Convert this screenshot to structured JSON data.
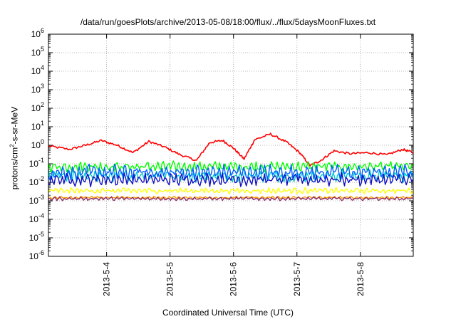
{
  "chart_data": {
    "type": "line",
    "title": "/data/run/goesPlots/archive/2013-05-08/18:00/flux/../flux/5daysMoonFluxes.txt",
    "xlabel": "Coordinated Universal Time (UTC)",
    "ylabel": {
      "pre": "protons/cm",
      "sup": "2",
      "post": "-s-sr-MeV"
    },
    "yscale": "log",
    "ylim": [
      1e-06,
      1000000.0
    ],
    "yticks": [
      {
        "exp": "-6"
      },
      {
        "exp": "-5"
      },
      {
        "exp": "-4"
      },
      {
        "exp": "-3"
      },
      {
        "exp": "-2"
      },
      {
        "exp": "-1"
      },
      {
        "exp": "0"
      },
      {
        "exp": "1"
      },
      {
        "exp": "2"
      },
      {
        "exp": "3"
      },
      {
        "exp": "4"
      },
      {
        "exp": "5"
      },
      {
        "exp": "6"
      }
    ],
    "xlim": [
      "2013-05-03 02:00",
      "2013-05-08 20:00"
    ],
    "xticks": [
      "2013-5-4",
      "2013-5-5",
      "2013-5-6",
      "2013-5-7",
      "2013-5-8"
    ],
    "grid": true,
    "series": [
      {
        "color": "#ff0000",
        "style": "red",
        "points": [
          [
            "2013-05-03 02:00",
            0.9
          ],
          [
            "2013-05-03 10:00",
            0.6
          ],
          [
            "2013-05-03 16:00",
            1.0
          ],
          [
            "2013-05-03 22:00",
            1.8
          ],
          [
            "2013-05-04 04:00",
            1.0
          ],
          [
            "2013-05-04 10:00",
            0.4
          ],
          [
            "2013-05-04 16:00",
            1.6
          ],
          [
            "2013-05-04 22:00",
            0.8
          ],
          [
            "2013-05-05 04:00",
            0.3
          ],
          [
            "2013-05-05 10:00",
            0.15
          ],
          [
            "2013-05-05 15:00",
            1.4
          ],
          [
            "2013-05-05 20:00",
            1.8
          ],
          [
            "2013-05-06 00:00",
            0.7
          ],
          [
            "2013-05-06 04:00",
            0.18
          ],
          [
            "2013-05-06 08:00",
            2.0
          ],
          [
            "2013-05-06 14:00",
            4.0
          ],
          [
            "2013-05-06 20:00",
            1.5
          ],
          [
            "2013-05-07 01:00",
            0.4
          ],
          [
            "2013-05-07 05:00",
            0.08
          ],
          [
            "2013-05-07 09:00",
            0.15
          ],
          [
            "2013-05-07 14:00",
            0.5
          ],
          [
            "2013-05-07 20:00",
            0.35
          ],
          [
            "2013-05-08 03:00",
            0.4
          ],
          [
            "2013-05-08 10:00",
            0.3
          ],
          [
            "2013-05-08 16:00",
            0.6
          ],
          [
            "2013-05-08 20:00",
            0.4
          ]
        ]
      },
      {
        "color": "#00ff00",
        "base": 0.07,
        "amp": 1.7
      },
      {
        "color": "#00cccc",
        "base": 0.022,
        "amp": 1.8
      },
      {
        "color": "#0060ff",
        "base": 0.035,
        "amp": 2.2
      },
      {
        "color": "#1010c0",
        "base": 0.014,
        "amp": 1.9
      },
      {
        "color": "#ffff00",
        "base": 0.0035,
        "amp": 1.35
      },
      {
        "color": "#ff9900",
        "base": 0.0015,
        "amp": 1.15
      },
      {
        "color": "#8a2a6a",
        "base": 0.0013,
        "amp": 1.2
      }
    ]
  }
}
